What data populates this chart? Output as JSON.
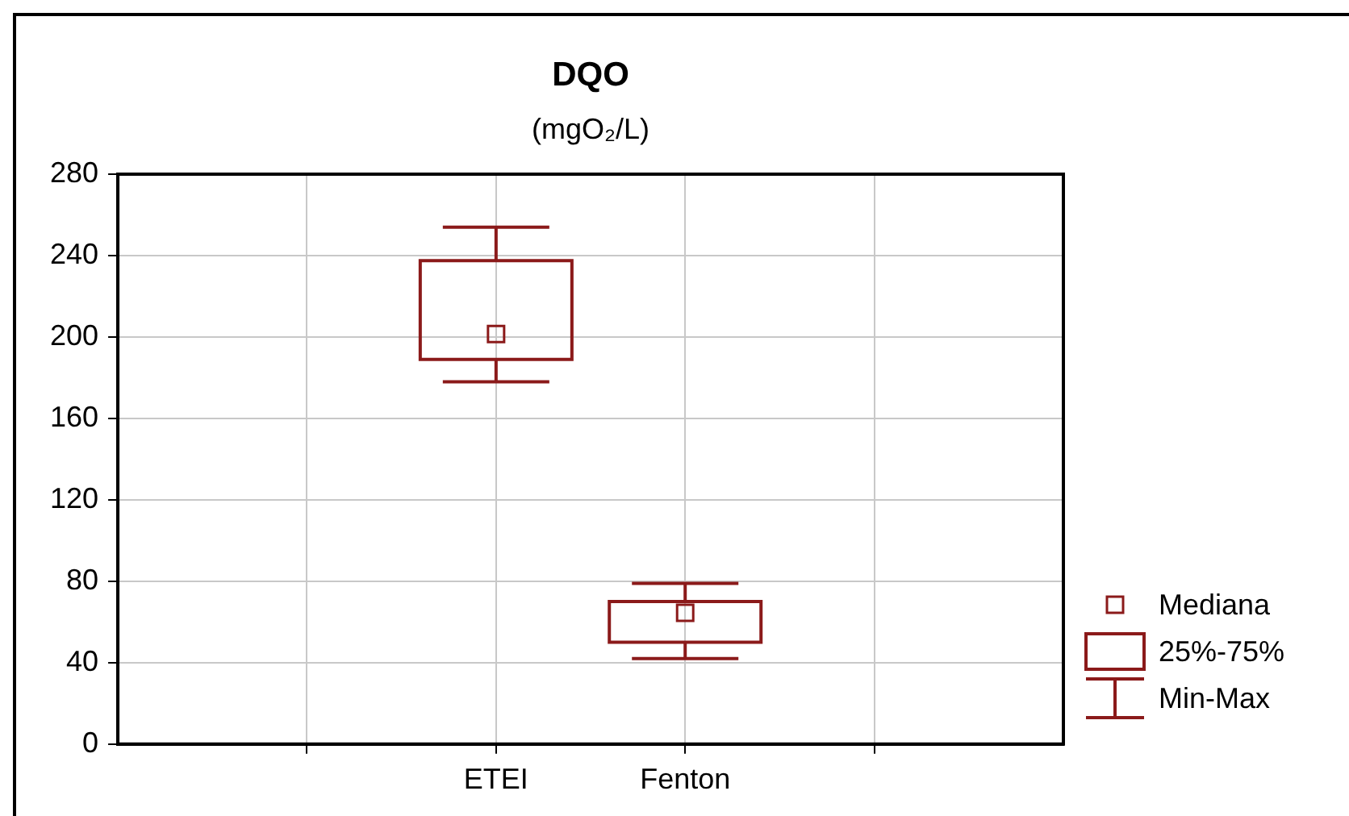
{
  "chart_data": {
    "type": "box",
    "title": "DQO",
    "subtitle": "(mgO₂/L)",
    "categories": [
      null,
      "ETEI",
      "Fenton",
      null
    ],
    "color": "#8b1a1a",
    "boxes": [
      null,
      {
        "low": 178,
        "q1": 189,
        "median": 201.5,
        "q3": 237.5,
        "high": 254
      },
      {
        "low": 42,
        "q1": 50,
        "median": 64.5,
        "q3": 70,
        "high": 79
      },
      null
    ],
    "ylim": [
      0,
      280
    ],
    "yticks": [
      0,
      40,
      80,
      120,
      160,
      200,
      240,
      280
    ],
    "grid": true,
    "annotations": [
      "Mediana",
      "25%-75%",
      "Min-Max"
    ]
  }
}
